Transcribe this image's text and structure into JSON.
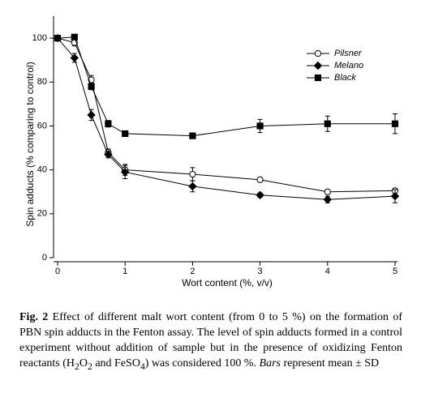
{
  "chart_data": {
    "type": "line",
    "xlabel": "Wort content (%, v/v)",
    "ylabel": "Spin adducts (% comparing to control)",
    "x": [
      0,
      0.25,
      0.5,
      0.75,
      1,
      2,
      3,
      4,
      5
    ],
    "xlim": [
      0,
      5
    ],
    "ylim": [
      0,
      110
    ],
    "xticks": [
      0,
      1,
      2,
      3,
      4,
      5
    ],
    "yticks": [
      0,
      20,
      40,
      60,
      80,
      100
    ],
    "legend": "upper right",
    "series": [
      {
        "name": "Pilsner",
        "color": "#000000",
        "marker": "circle-open",
        "values": [
          100,
          98,
          81,
          48,
          40,
          38,
          35.5,
          30,
          30.5
        ],
        "errors": [
          1,
          1.5,
          2,
          1.5,
          2.5,
          3,
          1,
          1,
          1
        ]
      },
      {
        "name": "Melano",
        "color": "#000000",
        "marker": "diamond",
        "values": [
          100,
          91,
          65,
          47,
          39,
          32.5,
          28.5,
          26.5,
          28
        ],
        "errors": [
          1,
          2,
          2.5,
          1.5,
          3,
          2.5,
          1,
          1.5,
          3
        ]
      },
      {
        "name": "Black",
        "color": "#000000",
        "marker": "square",
        "values": [
          100,
          100.5,
          78,
          61,
          56.5,
          55.5,
          60,
          61,
          61
        ],
        "errors": [
          1,
          1,
          1.5,
          1.5,
          1,
          1,
          3,
          3.5,
          4.5
        ]
      }
    ]
  },
  "caption": [
    "Fig. 2",
    " Effect of different malt wort content (from 0 to 5 %) on the formation of PBN spin adducts in the Fenton assay. The level of spin adducts formed in a control experiment without addition of sample but in the presence of oxidizing Fenton reactants (H",
    "2",
    "O",
    "2",
    " and FeSO",
    "4",
    ") was considered 100 %. ",
    "Bars",
    " represent mean ± SD"
  ]
}
